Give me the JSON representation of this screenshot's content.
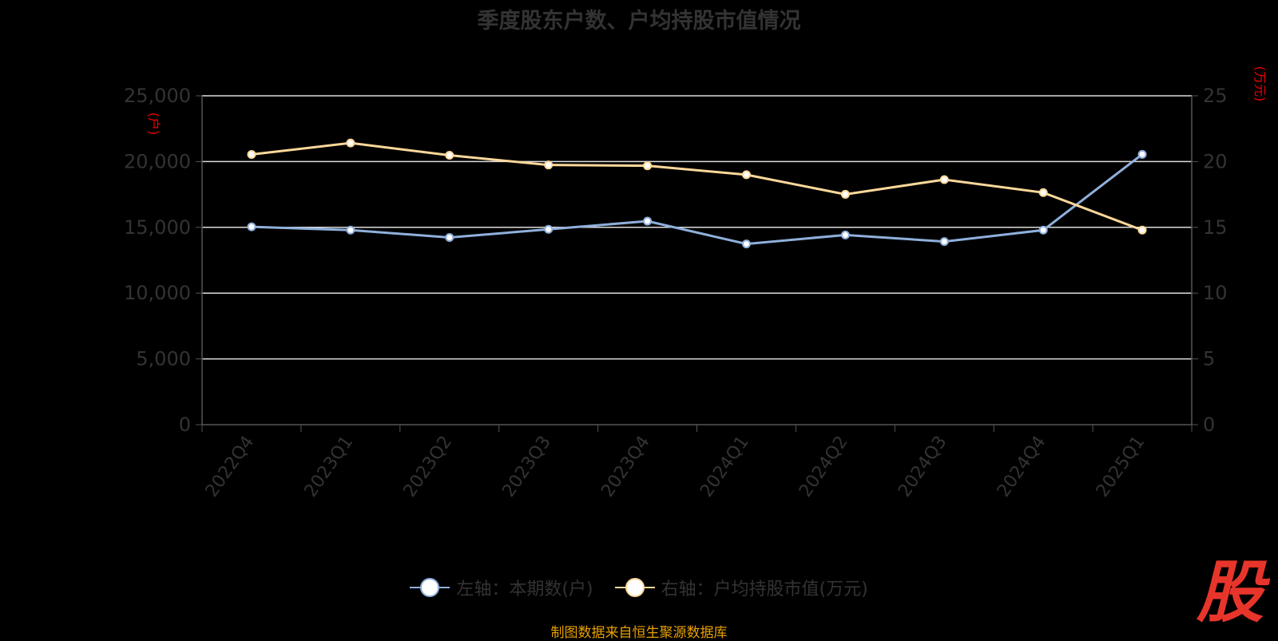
{
  "chart_data": {
    "type": "line",
    "title": "季度股东户数、户均持股市值情况",
    "categories": [
      "2022Q4",
      "2023Q1",
      "2023Q2",
      "2023Q3",
      "2023Q4",
      "2024Q1",
      "2024Q2",
      "2024Q3",
      "2024Q4",
      "2025Q1"
    ],
    "series": [
      {
        "name": "左轴：本期数(户)",
        "axis": "left",
        "color": "#8fb0dc",
        "values": [
          15040,
          14790,
          14230,
          14850,
          15470,
          13740,
          14420,
          13920,
          14790,
          20550
        ]
      },
      {
        "name": "右轴：户均持股市值(万元)",
        "axis": "right",
        "color": "#fcd89a",
        "values": [
          20.54,
          21.41,
          20.48,
          19.74,
          19.68,
          19.0,
          17.51,
          18.63,
          17.64,
          14.79
        ]
      }
    ],
    "left_axis": {
      "unit_label": "(户)",
      "ylim": [
        0,
        25000
      ],
      "ticks": [
        "0",
        "5,000",
        "10,000",
        "15,000",
        "20,000",
        "25,000"
      ],
      "tick_values": [
        0,
        5000,
        10000,
        15000,
        20000,
        25000
      ]
    },
    "right_axis": {
      "unit_label": "(万元)",
      "ylim": [
        0,
        25
      ],
      "ticks": [
        "0",
        "5",
        "10",
        "15",
        "20",
        "25"
      ],
      "tick_values": [
        0,
        5,
        10,
        15,
        20,
        25
      ]
    },
    "grid": true,
    "legend_position": "bottom"
  },
  "source": "制图数据来自恒生聚源数据库",
  "logo_text": "股"
}
